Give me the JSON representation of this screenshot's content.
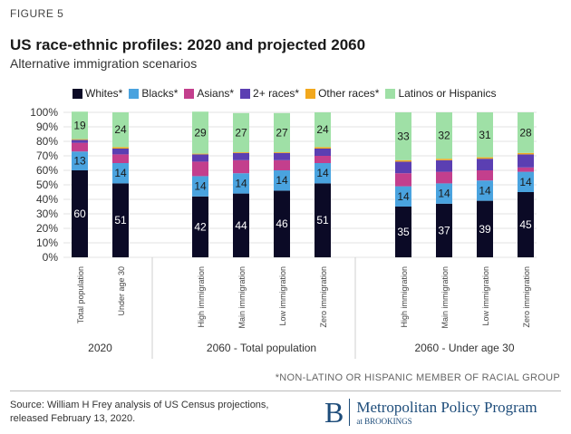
{
  "figure_label": "FIGURE 5",
  "chart_data": {
    "type": "bar",
    "stacked": true,
    "title": "US race-ethnic profiles: 2020 and projected 2060",
    "subtitle": "Alternative immigration scenarios",
    "ylim": [
      0,
      100
    ],
    "yticks": [
      "0%",
      "10%",
      "20%",
      "30%",
      "40%",
      "50%",
      "60%",
      "70%",
      "80%",
      "90%",
      "100%"
    ],
    "categories": [
      "Total population",
      "Under age 30",
      "High immigration",
      "Main immigration",
      "Low immigration",
      "Zero immigration",
      "High immigration",
      "Main immigration",
      "Low immigration",
      "Zero immigration"
    ],
    "groups": [
      {
        "label": "2020",
        "members": [
          0,
          1
        ]
      },
      {
        "label": "2060 - Total population",
        "members": [
          2,
          3,
          4,
          5
        ]
      },
      {
        "label": "2060 - Under age 30",
        "members": [
          6,
          7,
          8,
          9
        ]
      }
    ],
    "series": [
      {
        "name": "Whites*",
        "color": "#0b0a26",
        "labeled": true,
        "values": [
          60,
          51,
          42,
          44,
          46,
          51,
          35,
          37,
          39,
          45
        ]
      },
      {
        "name": "Blacks*",
        "color": "#4aa3df",
        "labeled": true,
        "values": [
          13,
          14,
          14,
          14,
          14,
          14,
          14,
          14,
          14,
          14
        ]
      },
      {
        "name": "Asians*",
        "color": "#c33f8d",
        "labeled": false,
        "values": [
          6,
          6,
          10,
          9,
          7,
          5,
          9,
          8,
          7,
          3
        ]
      },
      {
        "name": "2+ races*",
        "color": "#5b3fb2",
        "labeled": false,
        "values": [
          2,
          4,
          5,
          5,
          5,
          5,
          8,
          8,
          8,
          9
        ]
      },
      {
        "name": "Other races*",
        "color": "#f2a81d",
        "labeled": false,
        "values": [
          0.5,
          1,
          0.5,
          0.5,
          0.5,
          1,
          1,
          1,
          1,
          1
        ]
      },
      {
        "name": "Latinos or Hispanics",
        "color": "#9fe0a6",
        "labeled": true,
        "values": [
          19,
          24,
          29,
          27,
          27,
          24,
          33,
          32,
          31,
          28
        ]
      }
    ]
  },
  "note": "*NON-LATINO OR HISPANIC MEMBER OF RACIAL GROUP",
  "source_line1": "Source: William H Frey analysis of US Census projections,",
  "source_line2": "released February 13, 2020.",
  "brand": {
    "letter": "B",
    "name": "Metropolitan Policy Program",
    "sub": "at BROOKINGS"
  }
}
